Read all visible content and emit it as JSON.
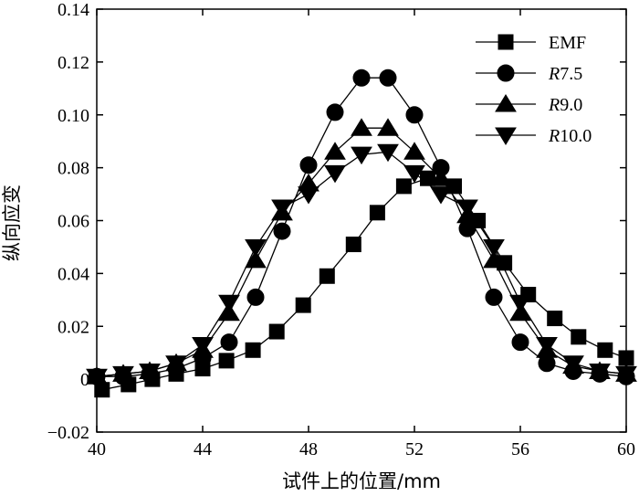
{
  "chart_data": {
    "type": "line",
    "xlabel": "试件上的位置/mm",
    "ylabel": "纵向应变",
    "xlim": [
      40,
      60
    ],
    "ylim": [
      -0.02,
      0.14
    ],
    "xticks": [
      40,
      44,
      48,
      52,
      56,
      60
    ],
    "yticks": [
      -0.02,
      0,
      0.02,
      0.04,
      0.06,
      0.08,
      0.1,
      0.12,
      0.14
    ],
    "ytick_labels": [
      "−0.02",
      "0",
      "0.02",
      "0.04",
      "0.06",
      "0.08",
      "0.10",
      "0.12",
      "0.14"
    ],
    "legend_position": "top-right",
    "grid": false,
    "series": [
      {
        "name": "EMF",
        "marker": "square",
        "x": [
          40.2,
          41.2,
          42.1,
          43.0,
          44.0,
          44.9,
          45.9,
          46.8,
          47.8,
          48.7,
          49.7,
          50.6,
          51.6,
          52.5,
          53.5,
          54.4,
          55.4,
          56.3,
          57.3,
          58.2,
          59.2,
          60.0
        ],
        "y": [
          -0.004,
          -0.002,
          0,
          0.002,
          0.004,
          0.007,
          0.011,
          0.018,
          0.028,
          0.039,
          0.051,
          0.063,
          0.073,
          0.076,
          0.073,
          0.06,
          0.044,
          0.032,
          0.023,
          0.016,
          0.011,
          0.008
        ]
      },
      {
        "name": "R7.5",
        "marker": "circle",
        "x": [
          40.0,
          41.0,
          42.0,
          43.0,
          44.0,
          45.0,
          46.0,
          47.0,
          48.0,
          49.0,
          50.0,
          51.0,
          52.0,
          53.0,
          54.0,
          55.0,
          56.0,
          57.0,
          58.0,
          59.0,
          60.0
        ],
        "y": [
          0.001,
          0.001,
          0.002,
          0.004,
          0.008,
          0.014,
          0.031,
          0.056,
          0.081,
          0.101,
          0.114,
          0.114,
          0.1,
          0.08,
          0.057,
          0.031,
          0.014,
          0.006,
          0.003,
          0.002,
          0.001
        ]
      },
      {
        "name": "R9.0",
        "marker": "triangle-up",
        "x": [
          40.0,
          41.0,
          42.0,
          43.0,
          44.0,
          45.0,
          46.0,
          47.0,
          48.0,
          49.0,
          50.0,
          51.0,
          52.0,
          53.0,
          54.0,
          55.0,
          56.0,
          57.0,
          58.0,
          59.0,
          60.0
        ],
        "y": [
          0.001,
          0.002,
          0.003,
          0.006,
          0.011,
          0.025,
          0.045,
          0.063,
          0.074,
          0.086,
          0.095,
          0.095,
          0.086,
          0.076,
          0.062,
          0.045,
          0.025,
          0.011,
          0.005,
          0.003,
          0.002
        ]
      },
      {
        "name": "R10.0",
        "marker": "triangle-down",
        "x": [
          40.0,
          41.0,
          42.0,
          43.0,
          44.0,
          45.0,
          46.0,
          47.0,
          48.0,
          49.0,
          50.0,
          51.0,
          52.0,
          53.0,
          54.0,
          55.0,
          56.0,
          57.0,
          58.0,
          59.0,
          60.0
        ],
        "y": [
          0.001,
          0.002,
          0.003,
          0.006,
          0.013,
          0.029,
          0.05,
          0.065,
          0.07,
          0.078,
          0.085,
          0.086,
          0.078,
          0.07,
          0.065,
          0.05,
          0.029,
          0.013,
          0.006,
          0.003,
          0.002
        ]
      }
    ]
  }
}
